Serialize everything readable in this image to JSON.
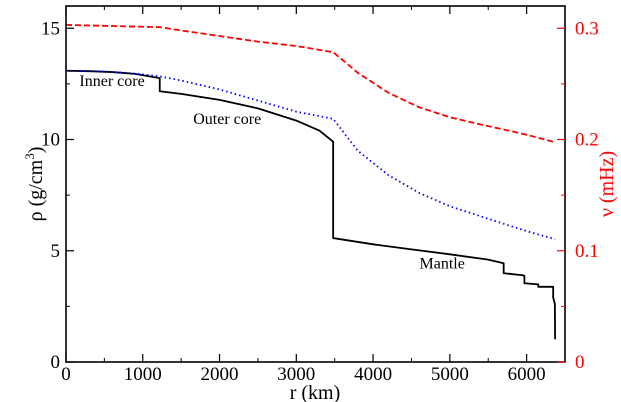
{
  "chart_data": {
    "type": "line",
    "x_axis": {
      "label": "r (km)",
      "range": [
        0,
        6500
      ],
      "ticks": [
        0,
        1000,
        2000,
        3000,
        4000,
        5000,
        6000
      ],
      "tick_labels": [
        "0",
        "1000",
        "2000",
        "3000",
        "4000",
        "5000",
        "6000"
      ]
    },
    "y_axis_left": {
      "label_main": "ρ (g/cm",
      "label_sup": "3",
      "label_end": ")",
      "range": [
        0,
        16
      ],
      "ticks": [
        0,
        5,
        10,
        15
      ],
      "tick_labels": [
        "0",
        "5",
        "10",
        "15"
      ]
    },
    "y_axis_right": {
      "label": "ν (mHz)",
      "color": "#ff0000",
      "range": [
        0,
        0.32
      ],
      "ticks": [
        0,
        0.1,
        0.2,
        0.3
      ],
      "tick_labels": [
        "0",
        "0.1",
        "0.2",
        "0.3"
      ]
    },
    "series": [
      {
        "style": "solid",
        "color": "#000000",
        "axis": "left",
        "x": [
          0,
          300,
          600,
          900,
          1221,
          1221,
          1500,
          2000,
          2500,
          3000,
          3300,
          3480,
          3480,
          4000,
          4500,
          5000,
          5500,
          5701,
          5701,
          5950,
          5971,
          5971,
          6151,
          6151,
          6346,
          6346,
          6368,
          6371
        ],
        "y": [
          13.09,
          13.07,
          13.03,
          12.95,
          12.76,
          12.17,
          12.05,
          11.78,
          11.4,
          10.85,
          10.4,
          9.9,
          5.57,
          5.29,
          5.06,
          4.84,
          4.6,
          4.44,
          3.99,
          3.9,
          3.87,
          3.54,
          3.49,
          3.38,
          3.38,
          2.9,
          2.6,
          1.02
        ]
      },
      {
        "style": "dotted",
        "color": "#0000ff",
        "axis": "left",
        "x": [
          0,
          300,
          600,
          900,
          1221,
          1500,
          2000,
          2500,
          3000,
          3480,
          3800,
          4200,
          4600,
          5000,
          5400,
          5800,
          6100,
          6371
        ],
        "y": [
          13.09,
          13.08,
          13.04,
          12.96,
          12.84,
          12.65,
          12.25,
          11.75,
          11.25,
          10.93,
          9.5,
          8.4,
          7.6,
          7.0,
          6.55,
          6.1,
          5.78,
          5.52
        ]
      },
      {
        "style": "dashed",
        "color": "#ff0000",
        "axis": "right",
        "x": [
          0,
          300,
          600,
          900,
          1221,
          1500,
          2000,
          2500,
          3000,
          3480,
          3800,
          4200,
          4600,
          5000,
          5400,
          5800,
          6100,
          6371
        ],
        "y": [
          0.303,
          0.3025,
          0.302,
          0.3015,
          0.301,
          0.298,
          0.293,
          0.288,
          0.284,
          0.2785,
          0.26,
          0.242,
          0.229,
          0.22,
          0.2135,
          0.2075,
          0.2025,
          0.1975
        ]
      }
    ],
    "annotations": [
      {
        "text": "Inner core",
        "x": 600,
        "y": 12.4
      },
      {
        "text": "Outer core",
        "x": 2100,
        "y": 10.7
      },
      {
        "text": "Mantle",
        "x": 4900,
        "y": 4.2
      }
    ],
    "grid": false,
    "legend": "none"
  }
}
